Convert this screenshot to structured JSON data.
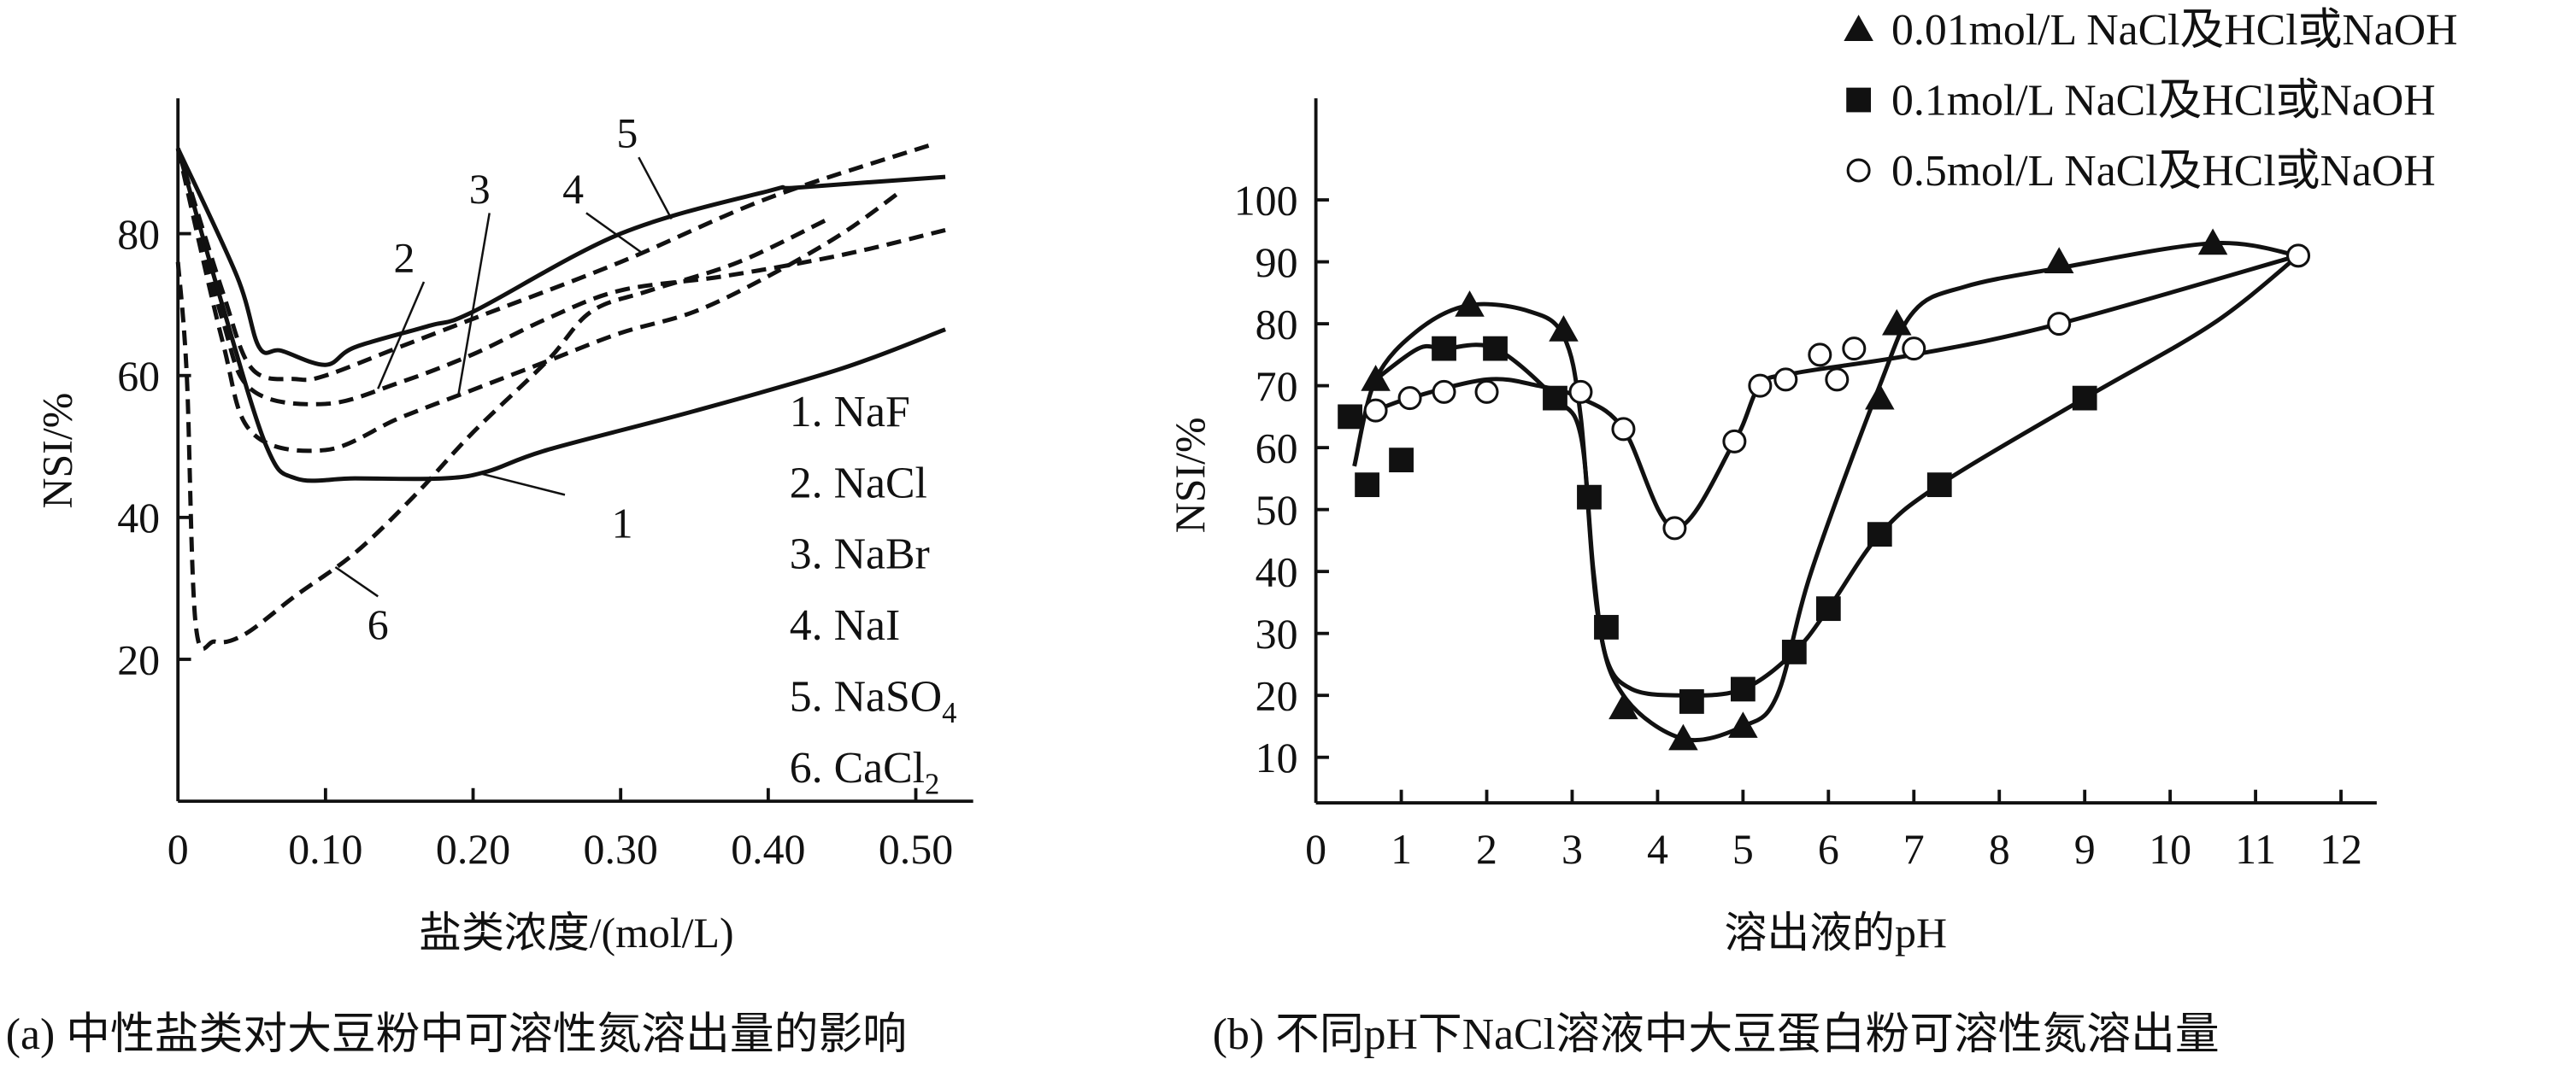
{
  "chart_data": [
    {
      "type": "line",
      "caption": "(a) 中性盐类对大豆粉中可溶性氮溶出量的影响",
      "xlabel": "盐类浓度/(mol/L)",
      "ylabel": "NSI/%",
      "xlim": [
        0,
        0.55
      ],
      "ylim": [
        0,
        100
      ],
      "xticks": [
        "0",
        "0.10",
        "0.20",
        "0.30",
        "0.40",
        "0.50"
      ],
      "xtick_values": [
        0,
        0.1,
        0.2,
        0.3,
        0.4,
        0.5
      ],
      "yticks": [
        "20",
        "40",
        "60",
        "80"
      ],
      "ytick_values": [
        20,
        40,
        60,
        80
      ],
      "legend": [
        "1. NaF",
        "2. NaCl",
        "3. NaBr",
        "4. NaI",
        "5. NaSO4",
        "6. CaCl2"
      ],
      "series": [
        {
          "label": "1",
          "name": "NaF",
          "style": "solid",
          "x": [
            0,
            0.03,
            0.06,
            0.08,
            0.12,
            0.18,
            0.21,
            0.25,
            0.35,
            0.45,
            0.52
          ],
          "y": [
            92,
            70,
            50,
            45.5,
            45.5,
            45.5,
            46.5,
            49.5,
            55,
            61,
            66.5
          ]
        },
        {
          "label": "2",
          "name": "NaCl",
          "style": "dashed",
          "x": [
            0,
            0.03,
            0.05,
            0.1,
            0.15,
            0.2,
            0.25,
            0.3,
            0.37,
            0.45,
            0.52
          ],
          "y": [
            92,
            68,
            58,
            56,
            59,
            63,
            68,
            72,
            74,
            77,
            80.5
          ]
        },
        {
          "label": "3",
          "name": "NaBr",
          "style": "dashed",
          "x": [
            0,
            0.03,
            0.05,
            0.1,
            0.15,
            0.2,
            0.25,
            0.3,
            0.35,
            0.4,
            0.45,
            0.49
          ],
          "y": [
            92,
            65,
            52,
            49.5,
            54,
            58,
            62,
            66,
            69,
            74,
            80,
            86
          ]
        },
        {
          "label": "4",
          "name": "NaI",
          "style": "dashed",
          "x": [
            0,
            0.03,
            0.05,
            0.08,
            0.1,
            0.15,
            0.2,
            0.3,
            0.4,
            0.51
          ],
          "y": [
            92,
            72,
            61,
            59.5,
            60,
            64,
            68,
            76,
            85,
            92.5
          ]
        },
        {
          "label": "5",
          "name": "NaSO4",
          "style": "solid",
          "x": [
            0,
            0.04,
            0.055,
            0.07,
            0.1,
            0.12,
            0.17,
            0.2,
            0.3,
            0.4,
            0.42,
            0.52
          ],
          "y": [
            92,
            74,
            64,
            63.5,
            61.5,
            64,
            67,
            69,
            80,
            86,
            86.5,
            88
          ]
        },
        {
          "label": "6",
          "name": "CaCl2",
          "style": "dashed",
          "x": [
            0,
            0.006,
            0.012,
            0.025,
            0.045,
            0.08,
            0.12,
            0.16,
            0.2,
            0.25,
            0.28,
            0.32,
            0.38,
            0.44
          ],
          "y": [
            76,
            60,
            25,
            22.5,
            23.5,
            29,
            35,
            43,
            52,
            62,
            69,
            72,
            76,
            82
          ]
        }
      ]
    },
    {
      "type": "scatter",
      "caption": "(b) 不同pH下NaCl溶液中大豆蛋白粉可溶性氮溶出量",
      "xlabel": "溶出液的pH",
      "ylabel": "NSI/%",
      "xlim": [
        0,
        12.5
      ],
      "ylim": [
        0,
        100
      ],
      "xticks": [
        "0",
        "1",
        "2",
        "3",
        "4",
        "5",
        "6",
        "7",
        "8",
        "9",
        "10",
        "11",
        "12"
      ],
      "yticks": [
        "10",
        "20",
        "30",
        "40",
        "50",
        "60",
        "70",
        "80",
        "90",
        "100"
      ],
      "legend": [
        "0.01mol/L NaCl及HCl或NaOH",
        "0.1mol/L NaCl及HCl或NaOH",
        "0.5mol/L NaCl及HCl或NaOH"
      ],
      "series": [
        {
          "name": "0.01mol/L NaCl及HCl或NaOH",
          "marker": "triangle",
          "x": [
            0.7,
            1.8,
            2.9,
            3.6,
            4.3,
            5.0,
            6.6,
            6.8,
            8.7,
            10.5
          ],
          "y": [
            71,
            83,
            79,
            18,
            13,
            15,
            68,
            80,
            90,
            93
          ],
          "curve_x": [
            0.45,
            0.7,
            1.2,
            1.8,
            2.5,
            2.9,
            3.1,
            3.3,
            3.6,
            4.3,
            5.0,
            5.4,
            5.8,
            6.6,
            7.0,
            7.6,
            8.7,
            10.5,
            11.5
          ],
          "curve_y": [
            57,
            71,
            79,
            83,
            82,
            78,
            65,
            33,
            20,
            13,
            15,
            20,
            40,
            70,
            82,
            86,
            89,
            93,
            91
          ]
        },
        {
          "name": "0.1mol/L NaCl及HCl或NaOH",
          "marker": "square",
          "x": [
            0.4,
            0.6,
            1.0,
            1.5,
            2.1,
            2.8,
            3.2,
            3.4,
            4.4,
            5.0,
            5.6,
            6.0,
            6.6,
            7.3,
            9.0
          ],
          "y": [
            65,
            54,
            58,
            76,
            76,
            68,
            52,
            31,
            19,
            21,
            27,
            34,
            46,
            54,
            68
          ],
          "curve_x": [
            0.7,
            1.2,
            1.5,
            2.1,
            2.8,
            3.1,
            3.25,
            3.4,
            3.7,
            4.3,
            5.0,
            5.6,
            6.0,
            6.6,
            7.3,
            9.0,
            10.5,
            11.5
          ],
          "curve_y": [
            71,
            76,
            76,
            76,
            68,
            62,
            40,
            26,
            21,
            20,
            21,
            27,
            34,
            46,
            54,
            68,
            80,
            91
          ]
        },
        {
          "name": "0.5mol/L NaCl及HCl或NaOH",
          "marker": "circle",
          "x": [
            0.7,
            1.1,
            1.5,
            2.0,
            3.1,
            3.6,
            4.2,
            4.9,
            5.2,
            5.5,
            5.9,
            6.1,
            6.3,
            7.0,
            8.7,
            11.5
          ],
          "y": [
            66,
            68,
            69,
            69,
            69,
            63,
            47,
            61,
            70,
            71,
            75,
            71,
            76,
            76,
            80,
            91
          ],
          "curve_x": [
            0.7,
            1.1,
            2.0,
            2.6,
            3.1,
            3.6,
            4.2,
            4.9,
            5.2,
            5.6,
            7.0,
            8.7,
            11.5
          ],
          "curve_y": [
            66,
            68,
            71,
            70,
            68,
            63,
            47,
            61,
            70,
            72,
            75,
            80,
            91
          ]
        }
      ]
    }
  ]
}
